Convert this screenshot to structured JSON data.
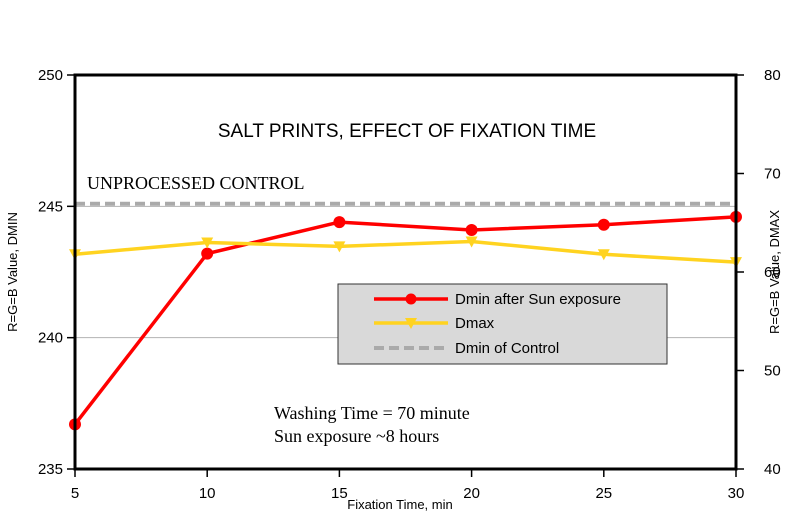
{
  "chart_data": {
    "type": "line",
    "title": "SALT PRINTS, EFFECT OF FIXATION TIME",
    "xlabel": "Fixation Time, min",
    "ylabel_left": "R=G=B Value, DMIN",
    "ylabel_right": "R=G=B Value, DMAX",
    "x": [
      5,
      10,
      15,
      20,
      25,
      30
    ],
    "x_ticks": [
      "5",
      "10",
      "15",
      "20",
      "25",
      "30"
    ],
    "xlim": [
      5,
      30
    ],
    "ylim_left": [
      235,
      250
    ],
    "ylim_right": [
      40,
      80
    ],
    "y_ticks_left": [
      "235",
      "240",
      "245",
      "250"
    ],
    "y_ticks_right": [
      "40",
      "50",
      "60",
      "70",
      "80"
    ],
    "grid": "horizontal",
    "series": [
      {
        "name": "Dmin after Sun exposure",
        "axis": "left",
        "color": "#ff0000",
        "marker": "circle",
        "values": [
          236.7,
          243.2,
          244.4,
          244.1,
          244.3,
          244.6
        ]
      },
      {
        "name": "Dmax",
        "axis": "right",
        "color": "#ffd320",
        "marker": "triangle-down",
        "values": [
          61.8,
          63.0,
          62.6,
          63.1,
          61.8,
          61.0
        ]
      },
      {
        "name": "Dmin of Control",
        "axis": "left",
        "color": "#aaaaaa",
        "style": "dashed",
        "values": [
          245.1,
          245.1,
          245.1,
          245.1,
          245.1,
          245.1
        ]
      }
    ],
    "annotations": {
      "control": "UNPROCESSED CONTROL",
      "washing": "Washing Time  = 70 minute",
      "sun": "Sun exposure ~8 hours"
    },
    "legend": {
      "placement": "center-right",
      "background": "#d9d9d9",
      "entries": [
        "Dmin after Sun exposure",
        "Dmax",
        "Dmin of Control"
      ]
    }
  }
}
